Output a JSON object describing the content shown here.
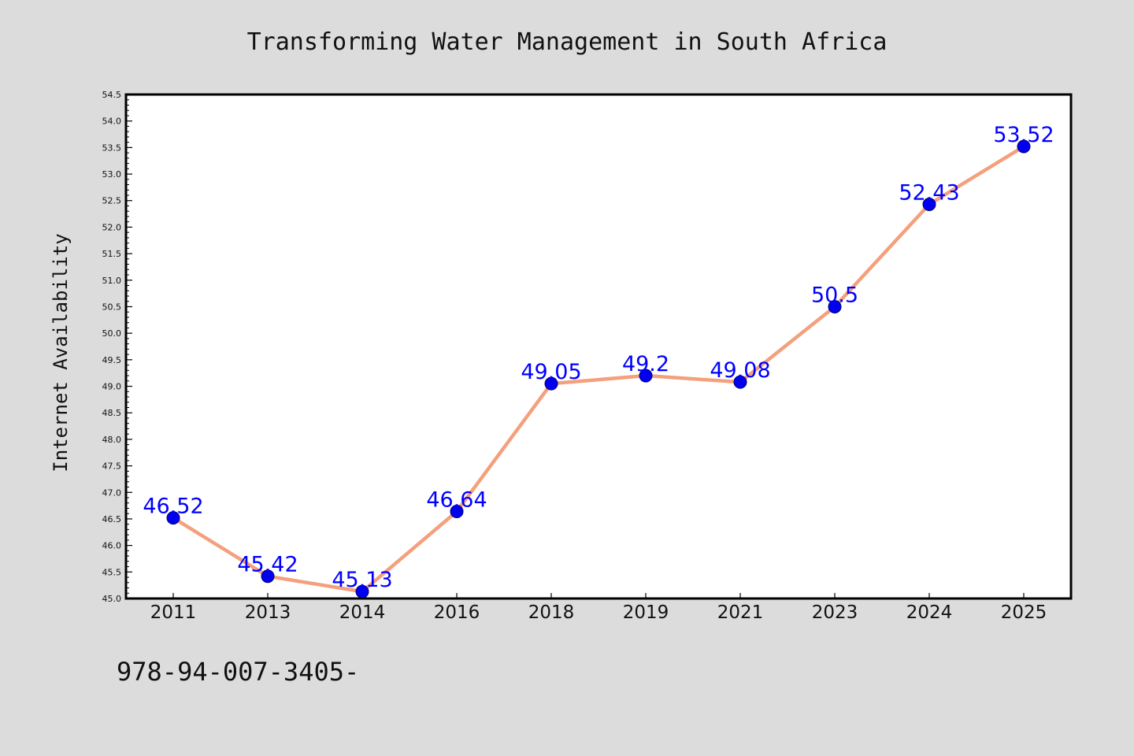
{
  "chart_data": {
    "type": "line",
    "title": "Transforming Water Management in South Africa",
    "xlabel": "",
    "ylabel": "Internet Availability",
    "categories": [
      "2011",
      "2013",
      "2014",
      "2016",
      "2018",
      "2019",
      "2021",
      "2023",
      "2024",
      "2025"
    ],
    "series": [
      {
        "values": [
          46.52,
          45.42,
          45.13,
          46.64,
          49.05,
          49.2,
          49.08,
          50.5,
          52.43,
          53.52
        ],
        "data_labels": [
          "46.52",
          "45.42",
          "45.13",
          "46.64",
          "49.05",
          "49.2",
          "49.08",
          "50.5",
          "52.43",
          "53.52"
        ]
      }
    ],
    "ylim": [
      45.0,
      54.5
    ],
    "ytick_step": 0.5,
    "grid": false,
    "colors": {
      "line": "#f4a07c",
      "marker_fill": "#0000ee",
      "marker_edge": "#00007a",
      "data_label": "#0000ff",
      "frame": "#000000",
      "plot_background": "#ffffff",
      "page_background": "#dcdcdc"
    }
  },
  "footnote": "978-94-007-3405-"
}
